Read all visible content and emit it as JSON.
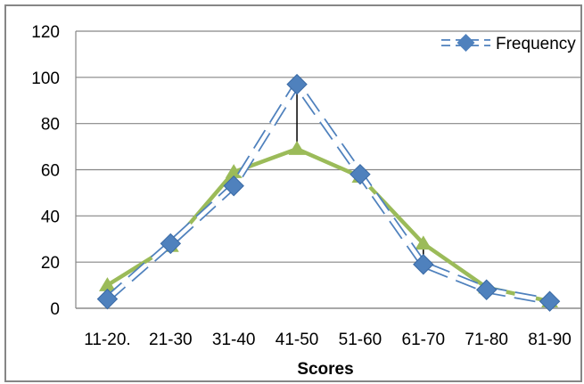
{
  "chart_data": {
    "type": "line",
    "categories": [
      "11-20.",
      "21-30",
      "31-40",
      "41-50",
      "51-60",
      "61-70",
      "71-80",
      "81-90"
    ],
    "series": [
      {
        "name": "Frequency",
        "values": [
          4,
          28,
          53,
          97,
          58,
          19,
          8,
          3
        ],
        "color": "#4F81BD",
        "marker": "diamond",
        "line_style": "dashed"
      },
      {
        "name": "",
        "values": [
          10,
          27,
          59,
          69,
          57,
          28,
          9,
          3
        ],
        "color": "#9BBB59",
        "marker": "triangle",
        "line_style": "solid"
      }
    ],
    "title": "",
    "xlabel": "Scores",
    "ylabel": "",
    "ylim": [
      0,
      120
    ],
    "yticks": [
      0,
      20,
      40,
      60,
      80,
      100,
      120
    ],
    "grid": true,
    "legend_position": "top-right",
    "high_low_lines": true
  }
}
